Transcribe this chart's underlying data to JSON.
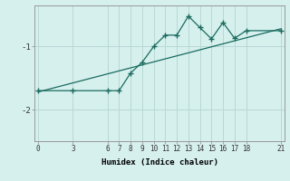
{
  "xlabel": "Humidex (Indice chaleur)",
  "bg_color": "#d6f0ee",
  "line_color": "#1a6b5e",
  "grid_color": "#b8d8d4",
  "xticks": [
    0,
    3,
    6,
    7,
    8,
    9,
    10,
    11,
    12,
    13,
    14,
    15,
    16,
    17,
    18,
    21
  ],
  "yticks": [
    -2,
    -1
  ],
  "ylim": [
    -2.5,
    -0.35
  ],
  "xlim": [
    -0.3,
    21.3
  ],
  "line1_x": [
    0,
    3,
    6,
    7,
    8,
    9,
    10,
    11,
    12,
    13,
    14,
    15,
    16,
    17,
    18,
    21
  ],
  "line1_y": [
    -1.7,
    -1.7,
    -1.7,
    -1.7,
    -1.42,
    -1.25,
    -1.0,
    -0.82,
    -0.82,
    -0.52,
    -0.7,
    -0.88,
    -0.62,
    -0.87,
    -0.75,
    -0.75
  ],
  "line2_x": [
    0,
    21
  ],
  "line2_y": [
    -1.72,
    -0.72
  ]
}
